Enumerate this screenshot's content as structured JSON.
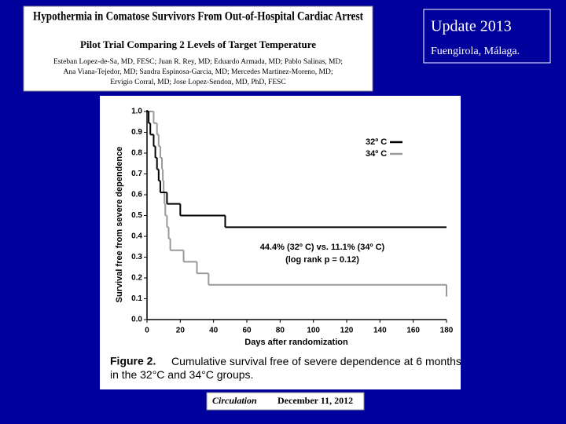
{
  "header": {
    "title": "Hypothermia in Comatose Survivors From Out-of-Hospital Cardiac Arrest",
    "subtitle": "Pilot Trial Comparing 2 Levels of Target Temperature",
    "authors": [
      "Esteban Lopez-de-Sa, MD, FESC; Juan R. Rey, MD; Eduardo Armada, MD; Pablo Salinas, MD;",
      "Ana Viana-Tejedor, MD; Sandra Espinosa-Garcia, MD; Mercedes Martinez-Moreno, MD;",
      "Ervigio Corral, MD; Jose Lopez-Sendon, MD, PhD, FESC"
    ]
  },
  "badge": {
    "title": "Update  2013",
    "place": "Fuengirola, Málaga."
  },
  "footer": {
    "journal": "Circulation",
    "date": "December 11, 2012"
  },
  "chart_data": {
    "type": "step",
    "y_label": "Survival free from severe dependence",
    "x_label": "Days after randomization",
    "caption_label": "Figure 2.",
    "caption": "Cumulative survival free of severe dependence at 6 months in the 32°C and 34°C groups.",
    "annotations": [
      "44.4% (32º C) vs. 11.1% (34º C)",
      "(log rank p = 0.12)"
    ],
    "xlim": [
      0,
      180
    ],
    "xticks": [
      0,
      20,
      40,
      60,
      80,
      100,
      120,
      140,
      160,
      180
    ],
    "ylim": [
      0,
      1
    ],
    "yticks": [
      {
        "value": 0,
        "label": "0.0"
      },
      0.1,
      0.2,
      0.3,
      0.4,
      0.5,
      0.6,
      0.7,
      0.8,
      0.9,
      {
        "value": 1,
        "label": "1.0"
      }
    ],
    "series": [
      {
        "name": "32º C",
        "color": "#000000",
        "x": [
          0,
          1,
          2,
          4,
          5,
          6,
          7,
          8,
          12,
          20,
          47,
          180
        ],
        "values": [
          1.0,
          0.944,
          0.889,
          0.833,
          0.778,
          0.722,
          0.667,
          0.611,
          0.556,
          0.5,
          0.444,
          0.444
        ]
      },
      {
        "name": "34º C",
        "color": "#999999",
        "x": [
          0,
          4,
          6,
          7,
          8,
          9,
          9.5,
          10,
          10.5,
          11,
          12,
          13,
          14,
          22,
          30,
          37,
          180
        ],
        "values": [
          1.0,
          0.944,
          0.889,
          0.833,
          0.778,
          0.722,
          0.667,
          0.611,
          0.556,
          0.5,
          0.444,
          0.389,
          0.333,
          0.278,
          0.222,
          0.167,
          0.111
        ]
      }
    ]
  }
}
